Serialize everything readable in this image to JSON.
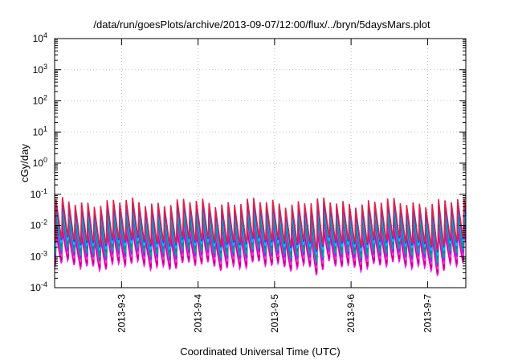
{
  "chart_data": {
    "type": "line",
    "title": "/data/run/goesPlots/archive/2013-09-07/12:00/flux/../bryn/5daysMars.plot",
    "xlabel": "Coordinated Universal Time (UTC)",
    "ylabel": "cGy/day",
    "yscale": "log",
    "ylim": [
      0.0001,
      10000
    ],
    "yticks": [
      {
        "value": 0.0001,
        "base": "10",
        "exp": "-4"
      },
      {
        "value": 0.001,
        "base": "10",
        "exp": "-3"
      },
      {
        "value": 0.01,
        "base": "10",
        "exp": "-2"
      },
      {
        "value": 0.1,
        "base": "10",
        "exp": "-1"
      },
      {
        "value": 1,
        "base": "10",
        "exp": "0"
      },
      {
        "value": 10,
        "base": "10",
        "exp": "1"
      },
      {
        "value": 100,
        "base": "10",
        "exp": "2"
      },
      {
        "value": 1000,
        "base": "10",
        "exp": "3"
      },
      {
        "value": 10000,
        "base": "10",
        "exp": "4"
      }
    ],
    "xlim": [
      "2013-09-02 03:00",
      "2013-09-07 12:00"
    ],
    "xticks": [
      {
        "value": "2013-09-03 00:00",
        "label": "2013-9-3"
      },
      {
        "value": "2013-09-04 00:00",
        "label": "2013-9-4"
      },
      {
        "value": "2013-09-05 00:00",
        "label": "2013-9-5"
      },
      {
        "value": "2013-09-06 00:00",
        "label": "2013-9-6"
      },
      {
        "value": "2013-09-07 00:00",
        "label": "2013-9-7"
      }
    ],
    "grid": true,
    "legend": "none",
    "pattern": {
      "shape": "sawtooth",
      "period_hours": 2.0,
      "peak_range": [
        0.03,
        0.07
      ],
      "trough_range": [
        0.0005,
        0.002
      ],
      "deep_dips": [
        "2013-09-05 12:00",
        "2013-09-07 02:00"
      ]
    },
    "series": [
      {
        "color": "#ff00ff",
        "peak": 0.0045,
        "trough": 0.0005
      },
      {
        "color": "#c8007a",
        "peak": 0.006,
        "trough": 0.0006
      },
      {
        "color": "#ff33cc",
        "peak": 0.009,
        "trough": 0.0008
      },
      {
        "color": "#8a2be2",
        "peak": 0.013,
        "trough": 0.001
      },
      {
        "color": "#00a0a0",
        "peak": 0.017,
        "trough": 0.0013
      },
      {
        "color": "#008b8b",
        "peak": 0.023,
        "trough": 0.0018
      },
      {
        "color": "#00bfff",
        "peak": 0.03,
        "trough": 0.0022
      },
      {
        "color": "#0050ff",
        "peak": 0.04,
        "trough": 0.0028
      },
      {
        "color": "#e0204a",
        "peak": 0.055,
        "trough": 0.0032
      }
    ]
  }
}
